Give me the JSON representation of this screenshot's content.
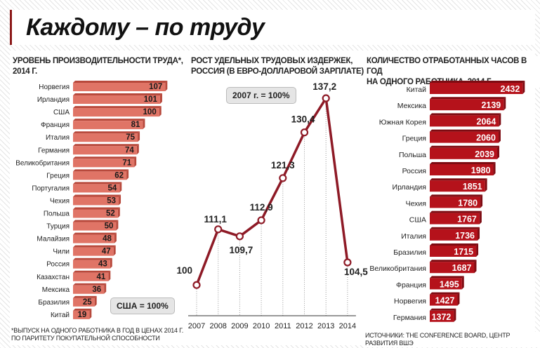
{
  "title": "Каждому – по труду",
  "panels": {
    "productivity": {
      "title_line1": "Уровень производительности труда*,",
      "title_line2": "2014 г.",
      "badge": "США = 100%",
      "note_line1": "*выпуск на одного работника в год в ценах 2014 г.",
      "note_line2": "по паритету покупательной способности"
    },
    "labor_costs": {
      "title_line1": "Рост удельных трудовых издержек,",
      "title_line2": "Россия (в евро-долларовой зарплате)",
      "badge": "2007 г. = 100%"
    },
    "hours": {
      "title_line1": "Количество отработанных часов в год",
      "title_line2": "на одного работника, 2014 г.",
      "source": "Источники: The Conference Board, Центр развития ВШЭ"
    }
  },
  "colors": {
    "bar_light": "#e07466",
    "bar_light_edge": "#b8493c",
    "bar_dark": "#b5121b",
    "bar_dark_edge": "#7e0b12",
    "line": "#8e1a26",
    "accent": "#8c1a1a"
  },
  "chart_data": [
    {
      "type": "bar",
      "orientation": "horizontal",
      "title": "Уровень производительности труда*, 2014 г.",
      "categories": [
        "Норвегия",
        "Ирландия",
        "США",
        "Франция",
        "Италия",
        "Германия",
        "Великобритания",
        "Греция",
        "Португалия",
        "Чехия",
        "Польша",
        "Турция",
        "Малайзия",
        "Чили",
        "Россия",
        "Казахстан",
        "Мексика",
        "Бразилия",
        "Китай"
      ],
      "values": [
        107,
        101,
        100,
        81,
        75,
        74,
        71,
        62,
        54,
        53,
        52,
        50,
        48,
        47,
        43,
        41,
        36,
        25,
        19
      ],
      "labels": [
        "107",
        "101",
        "100",
        "81",
        "75",
        "74",
        "71",
        "62",
        "54",
        "53",
        "52",
        "50",
        "48",
        "47",
        "43",
        "41",
        "36",
        "25",
        "19"
      ],
      "xlim": [
        0,
        110
      ]
    },
    {
      "type": "line",
      "title": "Рост удельных трудовых издержек, Россия (в евро-долларовой зарплате)",
      "x": [
        "2007",
        "2008",
        "2009",
        "2010",
        "2011",
        "2012",
        "2013",
        "2014"
      ],
      "values": [
        100,
        111.1,
        109.7,
        112.9,
        121.3,
        130.4,
        137.2,
        104.5
      ],
      "labels": [
        "100",
        "111,1",
        "109,7",
        "112,9",
        "121,3",
        "130,4",
        "137,2",
        "104,5"
      ],
      "ylim": [
        95,
        140
      ]
    },
    {
      "type": "bar",
      "orientation": "horizontal",
      "title": "Количество отработанных часов в год на одного работника, 2014 г.",
      "categories": [
        "Китай",
        "Мексика",
        "Южная Корея",
        "Греция",
        "Польша",
        "Россия",
        "Ирландия",
        "Чехия",
        "США",
        "Италия",
        "Бразилия",
        "Великобритания",
        "Франция",
        "Норвегия",
        "Германия"
      ],
      "values": [
        2432,
        2139,
        2064,
        2060,
        2039,
        1980,
        1851,
        1780,
        1767,
        1736,
        1715,
        1687,
        1495,
        1427,
        1372
      ],
      "labels": [
        "2432",
        "2139",
        "2064",
        "2060",
        "2039",
        "1980",
        "1851",
        "1780",
        "1767",
        "1736",
        "1715",
        "1687",
        "1495",
        "1427",
        "1372"
      ],
      "xlim": [
        1000,
        2450
      ]
    }
  ]
}
